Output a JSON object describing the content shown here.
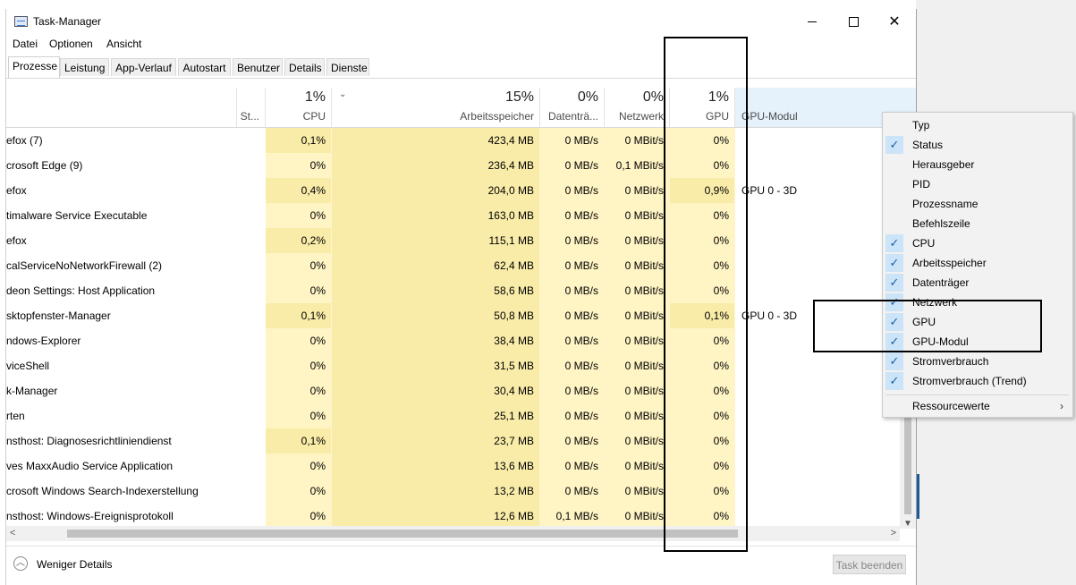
{
  "window": {
    "title": "Task-Manager"
  },
  "menu": [
    "Datei",
    "Optionen",
    "Ansicht"
  ],
  "tabs": [
    "Prozesse",
    "Leistung",
    "App-Verlauf",
    "Autostart",
    "Benutzer",
    "Details",
    "Dienste"
  ],
  "columns": {
    "status": {
      "label": "St..."
    },
    "cpu": {
      "pct": "1%",
      "label": "CPU"
    },
    "memory": {
      "pct": "15%",
      "label": "Arbeitsspeicher"
    },
    "disk": {
      "pct": "0%",
      "label": "Datenträ..."
    },
    "network": {
      "pct": "0%",
      "label": "Netzwerk"
    },
    "gpu": {
      "pct": "1%",
      "label": "GPU"
    },
    "gpu_engine": {
      "label": "GPU-Modul"
    }
  },
  "processes": [
    {
      "name": "efox (7)",
      "cpu": "0,1%",
      "mem": "423,4 MB",
      "disk": "0 MB/s",
      "net": "0 MBit/s",
      "gpu": "0%",
      "engine": ""
    },
    {
      "name": "crosoft Edge (9)",
      "cpu": "0%",
      "mem": "236,4 MB",
      "disk": "0 MB/s",
      "net": "0,1 MBit/s",
      "gpu": "0%",
      "engine": ""
    },
    {
      "name": "efox",
      "cpu": "0,4%",
      "mem": "204,0 MB",
      "disk": "0 MB/s",
      "net": "0 MBit/s",
      "gpu": "0,9%",
      "engine": "GPU 0 - 3D"
    },
    {
      "name": "timalware Service Executable",
      "cpu": "0%",
      "mem": "163,0 MB",
      "disk": "0 MB/s",
      "net": "0 MBit/s",
      "gpu": "0%",
      "engine": ""
    },
    {
      "name": "efox",
      "cpu": "0,2%",
      "mem": "115,1 MB",
      "disk": "0 MB/s",
      "net": "0 MBit/s",
      "gpu": "0%",
      "engine": ""
    },
    {
      "name": "calServiceNoNetworkFirewall (2)",
      "cpu": "0%",
      "mem": "62,4 MB",
      "disk": "0 MB/s",
      "net": "0 MBit/s",
      "gpu": "0%",
      "engine": ""
    },
    {
      "name": "deon Settings: Host Application",
      "cpu": "0%",
      "mem": "58,6 MB",
      "disk": "0 MB/s",
      "net": "0 MBit/s",
      "gpu": "0%",
      "engine": ""
    },
    {
      "name": "sktopfenster-Manager",
      "cpu": "0,1%",
      "mem": "50,8 MB",
      "disk": "0 MB/s",
      "net": "0 MBit/s",
      "gpu": "0,1%",
      "engine": "GPU 0 - 3D"
    },
    {
      "name": "ndows-Explorer",
      "cpu": "0%",
      "mem": "38,4 MB",
      "disk": "0 MB/s",
      "net": "0 MBit/s",
      "gpu": "0%",
      "engine": ""
    },
    {
      "name": "viceShell",
      "cpu": "0%",
      "mem": "31,5 MB",
      "disk": "0 MB/s",
      "net": "0 MBit/s",
      "gpu": "0%",
      "engine": ""
    },
    {
      "name": "k-Manager",
      "cpu": "0%",
      "mem": "30,4 MB",
      "disk": "0 MB/s",
      "net": "0 MBit/s",
      "gpu": "0%",
      "engine": ""
    },
    {
      "name": "rten",
      "cpu": "0%",
      "mem": "25,1 MB",
      "disk": "0 MB/s",
      "net": "0 MBit/s",
      "gpu": "0%",
      "engine": ""
    },
    {
      "name": "nsthost: Diagnosesrichtliniendienst",
      "cpu": "0,1%",
      "mem": "23,7 MB",
      "disk": "0 MB/s",
      "net": "0 MBit/s",
      "gpu": "0%",
      "engine": ""
    },
    {
      "name": "ves MaxxAudio Service Application",
      "cpu": "0%",
      "mem": "13,6 MB",
      "disk": "0 MB/s",
      "net": "0 MBit/s",
      "gpu": "0%",
      "engine": ""
    },
    {
      "name": "crosoft Windows Search-Indexerstellung",
      "cpu": "0%",
      "mem": "13,2 MB",
      "disk": "0 MB/s",
      "net": "0 MBit/s",
      "gpu": "0%",
      "engine": ""
    },
    {
      "name": "nsthost: Windows-Ereignisprotokoll",
      "cpu": "0%",
      "mem": "12,6 MB",
      "disk": "0,1 MB/s",
      "net": "0 MBit/s",
      "gpu": "0%",
      "engine": ""
    }
  ],
  "footer": {
    "fewer_details": "Weniger Details",
    "end_task": "Task beenden"
  },
  "context_menu": {
    "items": [
      {
        "label": "Typ",
        "checked": false
      },
      {
        "label": "Status",
        "checked": true
      },
      {
        "label": "Herausgeber",
        "checked": false
      },
      {
        "label": "PID",
        "checked": false
      },
      {
        "label": "Prozessname",
        "checked": false
      },
      {
        "label": "Befehlszeile",
        "checked": false
      },
      {
        "label": "CPU",
        "checked": true
      },
      {
        "label": "Arbeitsspeicher",
        "checked": true
      },
      {
        "label": "Datenträger",
        "checked": true
      },
      {
        "label": "Netzwerk",
        "checked": true
      },
      {
        "label": "GPU",
        "checked": true
      },
      {
        "label": "GPU-Modul",
        "checked": true
      },
      {
        "label": "Stromverbrauch",
        "checked": true
      },
      {
        "label": "Stromverbrauch (Trend)",
        "checked": true
      }
    ],
    "submenu": "Ressourcewerte"
  },
  "colors": {
    "heat_low": "#fff4c4",
    "heat_mid": "#f9eca9",
    "check_bg": "#cce4f7",
    "accent": "#1a5ea8"
  }
}
